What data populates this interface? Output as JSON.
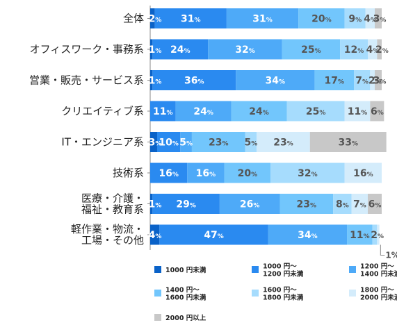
{
  "chart_data": {
    "type": "bar",
    "orientation": "horizontal",
    "stacked": true,
    "unit": "%",
    "categories": [
      [
        "全体"
      ],
      [
        "オフィスワーク・事務系"
      ],
      [
        "営業・販売・サービス系"
      ],
      [
        "クリエイティブ系"
      ],
      [
        "IT・エンジニア系"
      ],
      [
        "技術系"
      ],
      [
        "医療・介護・",
        "福祉・教育系"
      ],
      [
        "軽作業・物流・",
        "工場・その他"
      ]
    ],
    "series": [
      {
        "name": [
          "1000 円未満"
        ],
        "color": "#0a62c8",
        "values": [
          2,
          1,
          1,
          0,
          3,
          0,
          1,
          4
        ]
      },
      {
        "name": [
          "1000 円～",
          "1200 円未満"
        ],
        "color": "#2a8af0",
        "values": [
          31,
          24,
          36,
          11,
          10,
          16,
          29,
          47
        ]
      },
      {
        "name": [
          "1200 円～",
          "1400 円未満"
        ],
        "color": "#4eaaf8",
        "values": [
          31,
          32,
          34,
          24,
          5,
          16,
          26,
          34
        ]
      },
      {
        "name": [
          "1400 円～",
          "1600 円未満"
        ],
        "color": "#72c6fc",
        "values": [
          20,
          25,
          17,
          24,
          23,
          20,
          23,
          11
        ]
      },
      {
        "name": [
          "1600 円～",
          "1800 円未満"
        ],
        "color": "#a6dcfd",
        "values": [
          9,
          12,
          7,
          25,
          5,
          32,
          8,
          2
        ]
      },
      {
        "name": [
          "1800 円～",
          "2000 円未満"
        ],
        "color": "#d4ecfb",
        "values": [
          4,
          4,
          2,
          11,
          23,
          16,
          7,
          1
        ]
      },
      {
        "name": [
          "2000 円以上"
        ],
        "color": "#c8c8c8",
        "values": [
          3,
          2,
          3,
          6,
          33,
          0,
          6,
          0
        ]
      }
    ],
    "callout": "1%",
    "xlim": [
      0,
      100
    ],
    "grid": false,
    "legend_position": "bottom"
  }
}
